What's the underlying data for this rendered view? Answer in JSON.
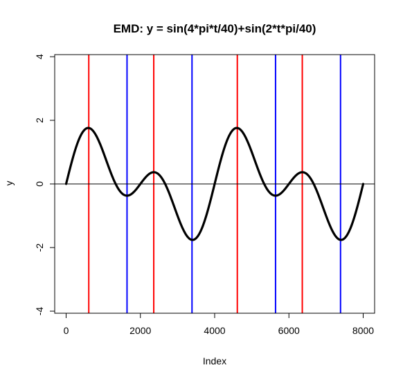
{
  "chart_data": {
    "type": "line",
    "title": "EMD: y = sin(4*pi*t/40)+sin(2*t*pi/40)",
    "xlabel": "Index",
    "ylabel": "y",
    "xlim": [
      0,
      8000
    ],
    "ylim": [
      -4,
      4
    ],
    "x_ticks": [
      0,
      2000,
      4000,
      6000,
      8000
    ],
    "x_tick_labels": [
      "0",
      "2000",
      "4000",
      "6000",
      "8000"
    ],
    "y_ticks": [
      -4,
      -2,
      0,
      2,
      4
    ],
    "y_tick_labels": [
      "-4",
      "-2",
      "0",
      "2",
      "4"
    ],
    "grid": false,
    "legend": "none",
    "series": [
      {
        "color": "#000000",
        "function": "sin(4*pi*t/40)+sin(2*t*pi/40)",
        "x": [
          0,
          200,
          400,
          600,
          800,
          1000,
          1200,
          1400,
          1600,
          1800,
          2000,
          2200,
          2400,
          2600,
          2800,
          3000,
          3200,
          3400,
          3600,
          3800,
          4000,
          4200,
          4400,
          4600,
          4800,
          5000,
          5200,
          5400,
          5600,
          5800,
          6000,
          6200,
          6400,
          6600,
          6800,
          7000,
          7200,
          7400,
          7600,
          7800,
          8000
        ],
        "y": [
          0.0,
          0.9,
          1.54,
          1.76,
          1.54,
          1.0,
          0.36,
          -0.17,
          -0.37,
          -0.25,
          0.0,
          0.25,
          0.37,
          0.17,
          -0.36,
          -1.0,
          -1.54,
          -1.76,
          -1.54,
          -0.9,
          0.0,
          0.9,
          1.54,
          1.76,
          1.54,
          1.0,
          0.36,
          -0.17,
          -0.37,
          -0.25,
          0.0,
          0.25,
          0.37,
          0.17,
          -0.36,
          -1.0,
          -1.54,
          -1.76,
          -1.54,
          -0.9,
          0.0
        ]
      }
    ],
    "horizontal_lines": [
      {
        "y": 0,
        "color": "#000000"
      }
    ],
    "vertical_lines": [
      {
        "x": 610,
        "color": "#ff0000"
      },
      {
        "x": 1640,
        "color": "#0000ff"
      },
      {
        "x": 2360,
        "color": "#ff0000"
      },
      {
        "x": 3390,
        "color": "#0000ff"
      },
      {
        "x": 4610,
        "color": "#ff0000"
      },
      {
        "x": 5640,
        "color": "#0000ff"
      },
      {
        "x": 6360,
        "color": "#ff0000"
      },
      {
        "x": 7390,
        "color": "#0000ff"
      }
    ]
  }
}
